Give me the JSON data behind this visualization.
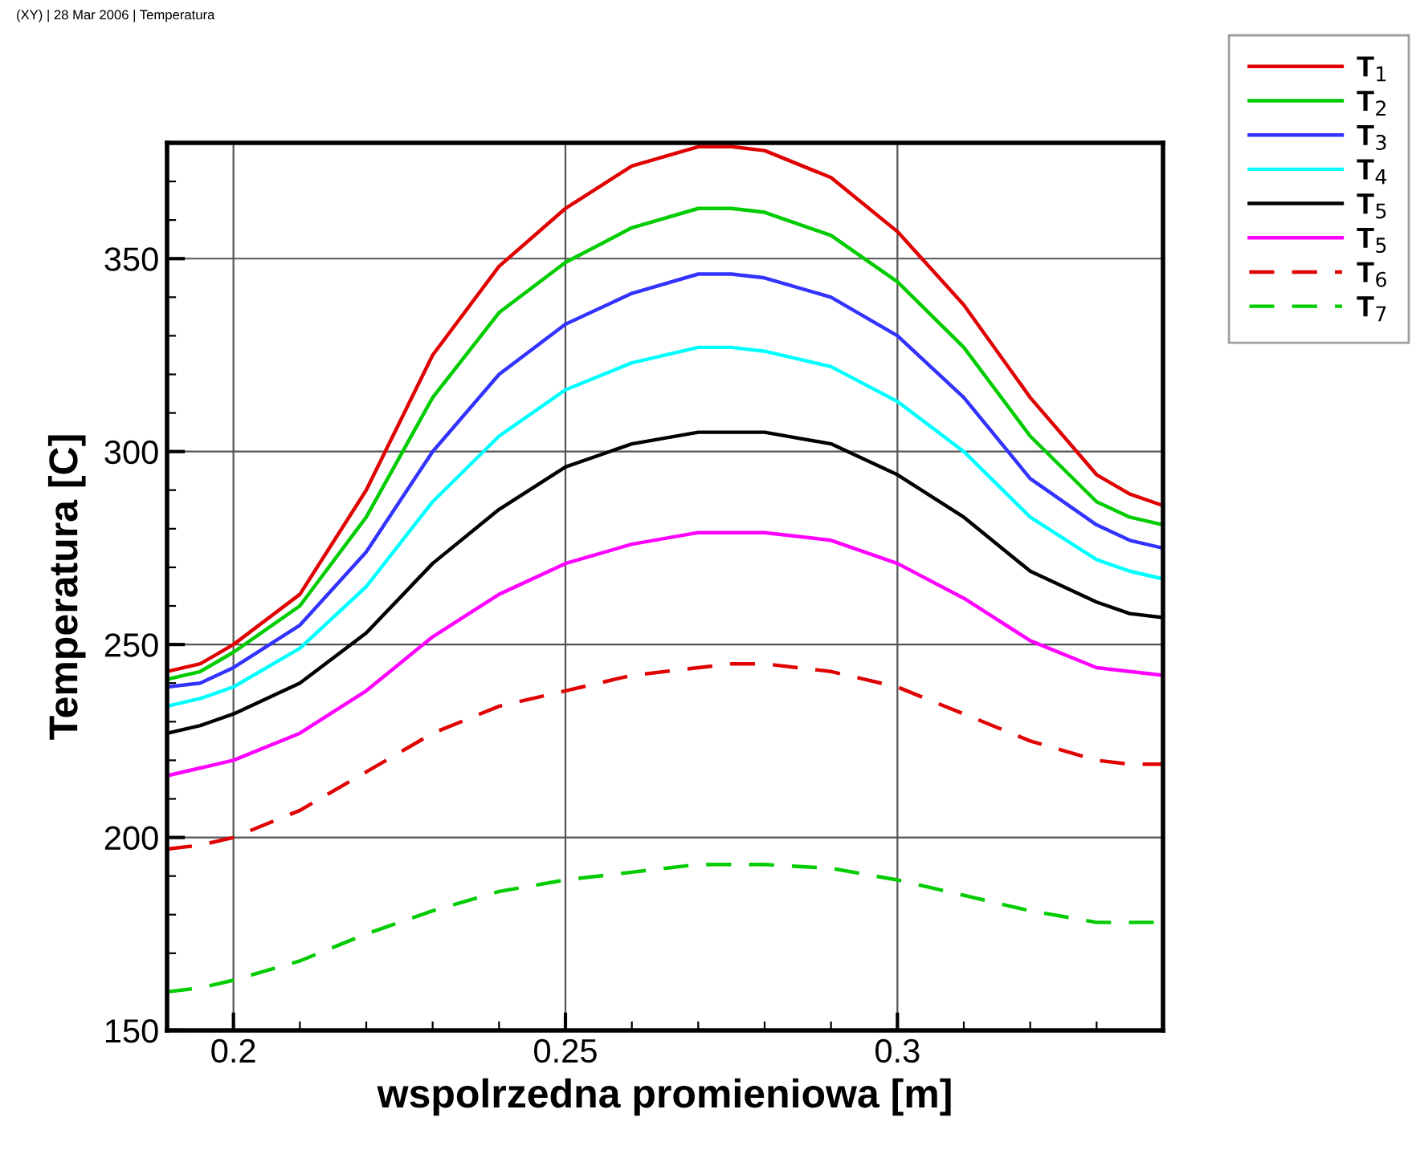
{
  "chart_data": {
    "type": "line",
    "xlabel": "wspolrzedna promieniowa [m]",
    "ylabel": "Temperatura [C]",
    "annotations": [
      "(XY) | 28 Mar 2006 | Temperatura"
    ],
    "x": [
      0.19,
      0.195,
      0.2,
      0.21,
      0.22,
      0.23,
      0.24,
      0.25,
      0.26,
      0.27,
      0.275,
      0.28,
      0.29,
      0.3,
      0.31,
      0.32,
      0.33,
      0.335,
      0.34
    ],
    "xlim": [
      0.19,
      0.34
    ],
    "xticks": [
      0.2,
      0.25,
      0.3
    ],
    "ylim": [
      150,
      380
    ],
    "yticks": [
      150,
      200,
      250,
      300,
      350
    ],
    "grid": true,
    "legend": "top right",
    "marker": "none",
    "series": [
      {
        "name": "T$_{1}$",
        "color": "#e00000",
        "line_style": "solid",
        "values": [
          243,
          245,
          250,
          263,
          290,
          325,
          348,
          363,
          374,
          379,
          379,
          378,
          371,
          357,
          338,
          314,
          294,
          289,
          286
        ]
      },
      {
        "name": "T$_{2}$",
        "color": "#00cc00",
        "line_style": "solid",
        "values": [
          241,
          243,
          248,
          260,
          283,
          314,
          336,
          349,
          358,
          363,
          363,
          362,
          356,
          344,
          327,
          304,
          287,
          283,
          281
        ]
      },
      {
        "name": "T$_{3}$",
        "color": "#3333ff",
        "line_style": "solid",
        "values": [
          239,
          240,
          244,
          255,
          274,
          300,
          320,
          333,
          341,
          346,
          346,
          345,
          340,
          330,
          314,
          293,
          281,
          277,
          275
        ]
      },
      {
        "name": "T$_{4}$",
        "color": "#00ffff",
        "line_style": "solid",
        "values": [
          234,
          236,
          239,
          249,
          265,
          287,
          304,
          316,
          323,
          327,
          327,
          326,
          322,
          313,
          300,
          283,
          272,
          269,
          267
        ]
      },
      {
        "name": "T$_{5}$",
        "color": "#000000",
        "line_style": "solid",
        "values": [
          227,
          229,
          232,
          240,
          253,
          271,
          285,
          296,
          302,
          305,
          305,
          305,
          302,
          294,
          283,
          269,
          261,
          258,
          257
        ]
      },
      {
        "name": "T$_{5}$",
        "color": "#ff00ff",
        "line_style": "solid",
        "values": [
          216,
          218,
          220,
          227,
          238,
          252,
          263,
          271,
          276,
          279,
          279,
          279,
          277,
          271,
          262,
          251,
          244,
          243,
          242
        ]
      },
      {
        "name": "T$_{6}$",
        "color": "#e00000",
        "line_style": "dashed",
        "values": [
          197,
          198,
          200,
          207,
          217,
          227,
          234,
          238,
          242,
          244,
          245,
          245,
          243,
          239,
          232,
          225,
          220,
          219,
          219
        ]
      },
      {
        "name": "T$_{7}$",
        "color": "#00cc00",
        "line_style": "dashed",
        "values": [
          160,
          161,
          163,
          168,
          175,
          181,
          186,
          189,
          191,
          193,
          193,
          193,
          192,
          189,
          185,
          181,
          178,
          178,
          178
        ]
      }
    ]
  }
}
